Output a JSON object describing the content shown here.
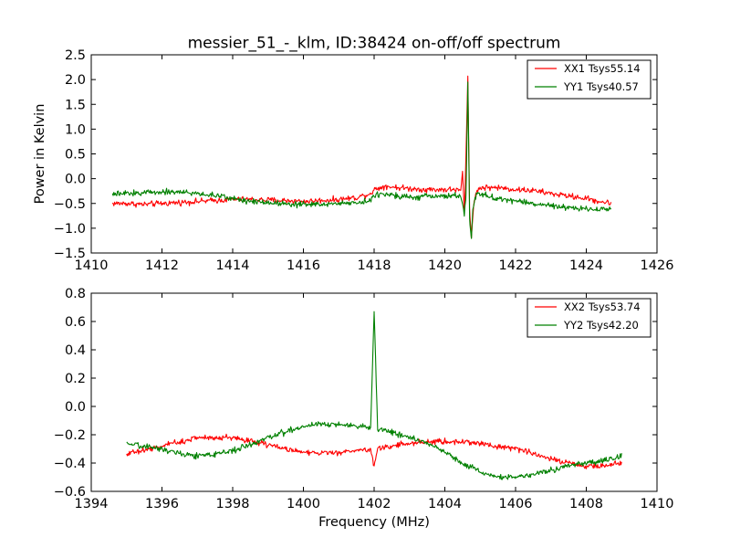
{
  "chart_data": [
    {
      "type": "line",
      "title": "messier_51_-_klm, ID:38424 on-off/off spectrum",
      "xlabel": "",
      "ylabel": "Power in Kelvin",
      "xlim": [
        1410,
        1426
      ],
      "ylim": [
        -1.5,
        2.5
      ],
      "xticks": [
        "1410",
        "1412",
        "1414",
        "1416",
        "1418",
        "1420",
        "1422",
        "1424",
        "1426"
      ],
      "yticks": [
        "−1.5",
        "−1.0",
        "−0.5",
        "0.0",
        "0.5",
        "1.0",
        "1.5",
        "2.0",
        "2.5"
      ],
      "legend_position": "top-right",
      "series": [
        {
          "name": "XX1 Tsys55.14",
          "color": "#ff0000",
          "x": [
            1410.6,
            1411.0,
            1411.5,
            1412.0,
            1412.5,
            1413.0,
            1413.5,
            1414.0,
            1414.5,
            1415.0,
            1415.5,
            1416.0,
            1416.5,
            1417.0,
            1417.5,
            1417.9,
            1418.0,
            1418.3,
            1418.7,
            1419.0,
            1419.5,
            1420.0,
            1420.3,
            1420.45,
            1420.5,
            1420.55,
            1420.6,
            1420.65,
            1420.7,
            1420.75,
            1420.8,
            1420.9,
            1421.0,
            1421.5,
            1422.0,
            1422.5,
            1423.0,
            1423.5,
            1424.0,
            1424.3,
            1424.7
          ],
          "y": [
            -0.5,
            -0.5,
            -0.52,
            -0.5,
            -0.48,
            -0.46,
            -0.44,
            -0.42,
            -0.42,
            -0.43,
            -0.44,
            -0.46,
            -0.44,
            -0.42,
            -0.38,
            -0.3,
            -0.22,
            -0.15,
            -0.18,
            -0.2,
            -0.22,
            -0.22,
            -0.22,
            -0.25,
            0.15,
            -0.7,
            0.5,
            2.07,
            -0.6,
            -1.2,
            -0.6,
            -0.25,
            -0.18,
            -0.18,
            -0.22,
            -0.24,
            -0.3,
            -0.35,
            -0.4,
            -0.45,
            -0.5
          ]
        },
        {
          "name": "YY1 Tsys40.57",
          "color": "#008000",
          "x": [
            1410.6,
            1411.0,
            1411.5,
            1412.0,
            1412.5,
            1413.0,
            1413.5,
            1414.0,
            1414.5,
            1415.0,
            1415.5,
            1416.0,
            1416.5,
            1417.0,
            1417.5,
            1417.9,
            1418.0,
            1418.3,
            1418.7,
            1419.0,
            1419.5,
            1420.0,
            1420.3,
            1420.45,
            1420.5,
            1420.55,
            1420.6,
            1420.65,
            1420.7,
            1420.75,
            1420.8,
            1420.9,
            1421.0,
            1421.5,
            1422.0,
            1422.5,
            1423.0,
            1423.5,
            1424.0,
            1424.3,
            1424.7
          ],
          "y": [
            -0.32,
            -0.3,
            -0.28,
            -0.26,
            -0.27,
            -0.3,
            -0.34,
            -0.4,
            -0.45,
            -0.48,
            -0.5,
            -0.52,
            -0.52,
            -0.5,
            -0.48,
            -0.44,
            -0.35,
            -0.3,
            -0.34,
            -0.38,
            -0.36,
            -0.35,
            -0.34,
            -0.38,
            -0.5,
            -0.75,
            -0.3,
            1.95,
            -0.8,
            -1.2,
            -0.55,
            -0.3,
            -0.32,
            -0.4,
            -0.45,
            -0.5,
            -0.55,
            -0.6,
            -0.6,
            -0.62,
            -0.6
          ]
        }
      ]
    },
    {
      "type": "line",
      "title": "",
      "xlabel": "Frequency (MHz)",
      "ylabel": "",
      "xlim": [
        1394,
        1410
      ],
      "ylim": [
        -0.6,
        0.8
      ],
      "xticks": [
        "1394",
        "1396",
        "1398",
        "1400",
        "1402",
        "1404",
        "1406",
        "1408",
        "1410"
      ],
      "yticks": [
        "−0.6",
        "−0.4",
        "−0.2",
        "0.0",
        "0.2",
        "0.4",
        "0.6",
        "0.8"
      ],
      "legend_position": "top-right",
      "series": [
        {
          "name": "XX2 Tsys53.74",
          "color": "#ff0000",
          "x": [
            1395.0,
            1395.5,
            1396.0,
            1396.5,
            1397.0,
            1397.5,
            1398.0,
            1398.5,
            1399.0,
            1399.5,
            1400.0,
            1400.5,
            1401.0,
            1401.5,
            1401.9,
            1402.0,
            1402.1,
            1402.5,
            1403.0,
            1403.5,
            1404.0,
            1404.5,
            1405.0,
            1405.5,
            1406.0,
            1406.5,
            1407.0,
            1407.5,
            1408.0,
            1408.5,
            1409.0
          ],
          "y": [
            -0.33,
            -0.31,
            -0.28,
            -0.25,
            -0.22,
            -0.22,
            -0.22,
            -0.24,
            -0.27,
            -0.3,
            -0.32,
            -0.33,
            -0.33,
            -0.31,
            -0.3,
            -0.42,
            -0.3,
            -0.28,
            -0.26,
            -0.25,
            -0.25,
            -0.25,
            -0.26,
            -0.28,
            -0.3,
            -0.33,
            -0.37,
            -0.4,
            -0.42,
            -0.42,
            -0.4
          ]
        },
        {
          "name": "YY2 Tsys42.20",
          "color": "#008000",
          "x": [
            1395.0,
            1395.5,
            1396.0,
            1396.5,
            1397.0,
            1397.5,
            1398.0,
            1398.5,
            1399.0,
            1399.5,
            1400.0,
            1400.5,
            1401.0,
            1401.5,
            1401.9,
            1402.0,
            1402.1,
            1402.5,
            1403.0,
            1403.5,
            1404.0,
            1404.5,
            1405.0,
            1405.5,
            1406.0,
            1406.5,
            1407.0,
            1407.5,
            1408.0,
            1408.5,
            1409.0
          ],
          "y": [
            -0.27,
            -0.28,
            -0.3,
            -0.33,
            -0.35,
            -0.34,
            -0.31,
            -0.27,
            -0.22,
            -0.18,
            -0.14,
            -0.12,
            -0.13,
            -0.14,
            -0.15,
            0.67,
            -0.16,
            -0.18,
            -0.22,
            -0.26,
            -0.32,
            -0.4,
            -0.46,
            -0.5,
            -0.5,
            -0.48,
            -0.45,
            -0.42,
            -0.4,
            -0.38,
            -0.35
          ]
        }
      ]
    }
  ]
}
